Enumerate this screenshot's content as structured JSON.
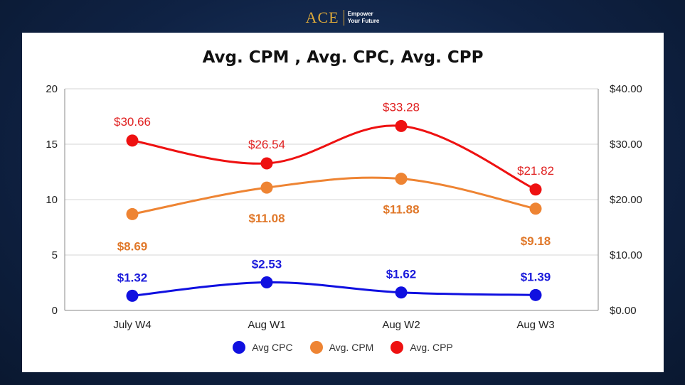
{
  "brand": {
    "name": "ACE",
    "tagline_line1": "Empower",
    "tagline_line2": "Your Future"
  },
  "chart_data": {
    "type": "line",
    "title": "Avg. CPM , Avg. CPC, Avg. CPP",
    "categories": [
      "July W4",
      "Aug W1",
      "Aug W2",
      "Aug W3"
    ],
    "y_left": {
      "ylim": [
        0,
        20
      ],
      "ticks": [
        "0",
        "5",
        "10",
        "15",
        "20"
      ]
    },
    "y_right": {
      "ylim": [
        0,
        40
      ],
      "ticks": [
        "$0.00",
        "$10.00",
        "$20.00",
        "$30.00",
        "$40.00"
      ]
    },
    "grid": true,
    "legend_position": "bottom",
    "series": [
      {
        "name": "Avg CPC",
        "axis": "left",
        "color": "#1010e0",
        "label_color": "#1a1adb",
        "values": [
          1.32,
          2.53,
          1.62,
          1.39
        ],
        "labels": [
          "$1.32",
          "$2.53",
          "$1.62",
          "$1.39"
        ]
      },
      {
        "name": "Avg. CPM",
        "axis": "left",
        "color": "#ee8433",
        "label_color": "#e0782a",
        "values": [
          8.69,
          11.08,
          11.88,
          9.18
        ],
        "labels": [
          "$8.69",
          "$11.08",
          "$11.88",
          "$9.18"
        ]
      },
      {
        "name": "Avg. CPP",
        "axis": "right",
        "color": "#ee1111",
        "label_color": "#e02020",
        "values": [
          30.66,
          26.54,
          33.28,
          21.82
        ],
        "labels": [
          "$30.66",
          "$26.54",
          "$33.28",
          "$21.82"
        ]
      }
    ]
  }
}
